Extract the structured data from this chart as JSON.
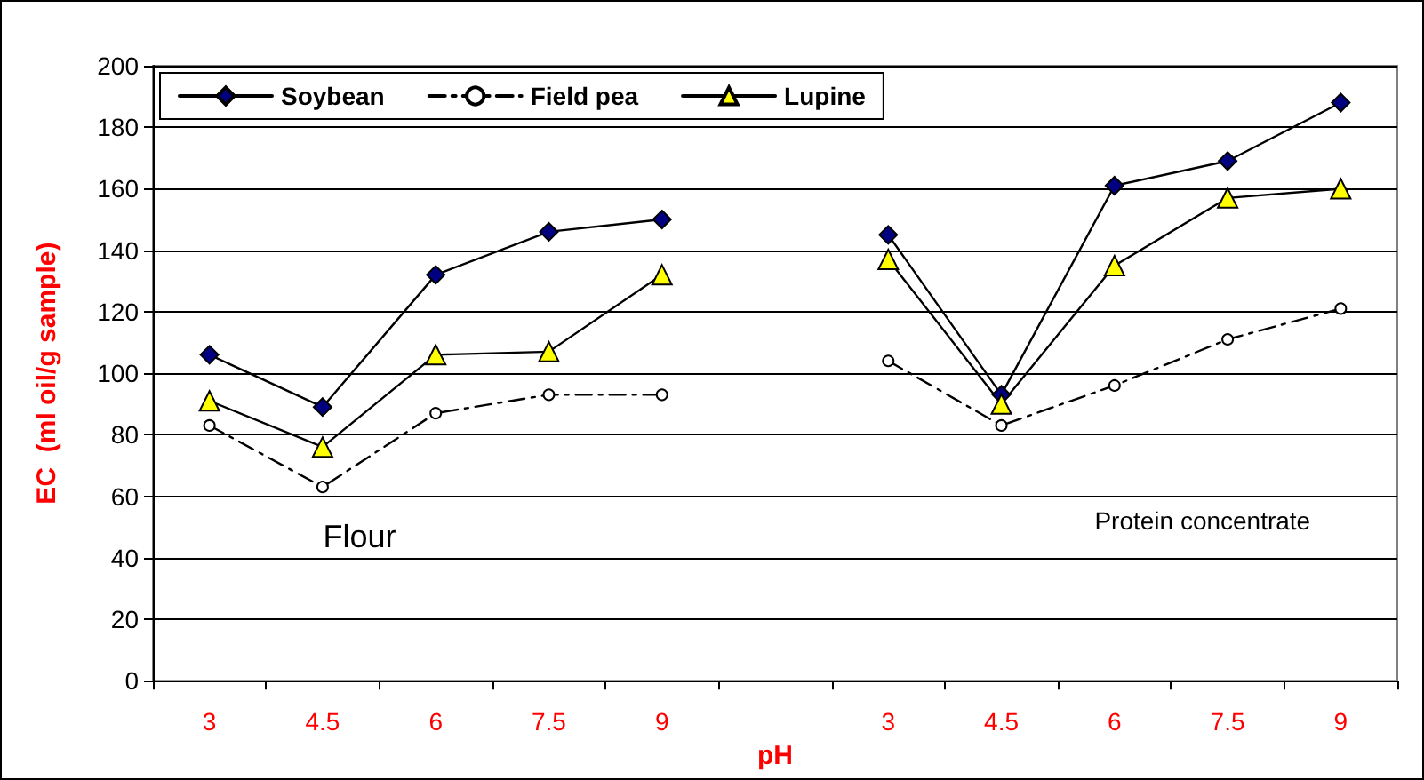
{
  "chart_data": {
    "type": "line",
    "xlabel": "pH",
    "ylabel": "EC  (ml oil/g sample)",
    "categories": [
      "3",
      "4.5",
      "6",
      "7.5",
      "9",
      null,
      "3",
      "4.5",
      "6",
      "7.5",
      "9"
    ],
    "series": [
      {
        "name": "Soybean",
        "color": "#000080",
        "marker": "diamond",
        "line_style": "solid",
        "values": [
          106,
          89,
          132,
          146,
          150,
          null,
          145,
          93,
          161,
          169,
          188
        ]
      },
      {
        "name": "Field pea",
        "color": "#ffffff",
        "marker": "circle",
        "line_style": "dashed",
        "values": [
          83,
          63,
          87,
          93,
          93,
          null,
          104,
          83,
          96,
          111,
          121
        ]
      },
      {
        "name": "Lupine",
        "color": "#ffff00",
        "marker": "triangle",
        "line_style": "solid",
        "values": [
          91,
          76,
          106,
          107,
          132,
          null,
          137,
          90,
          135,
          157,
          160
        ]
      }
    ],
    "ylim": [
      0,
      200
    ],
    "yticks": [
      0,
      20,
      40,
      60,
      80,
      100,
      120,
      140,
      160,
      180,
      200
    ],
    "grid": "y",
    "legend": "top left",
    "annotations": [
      "Flour",
      "Protein concentrate"
    ]
  }
}
